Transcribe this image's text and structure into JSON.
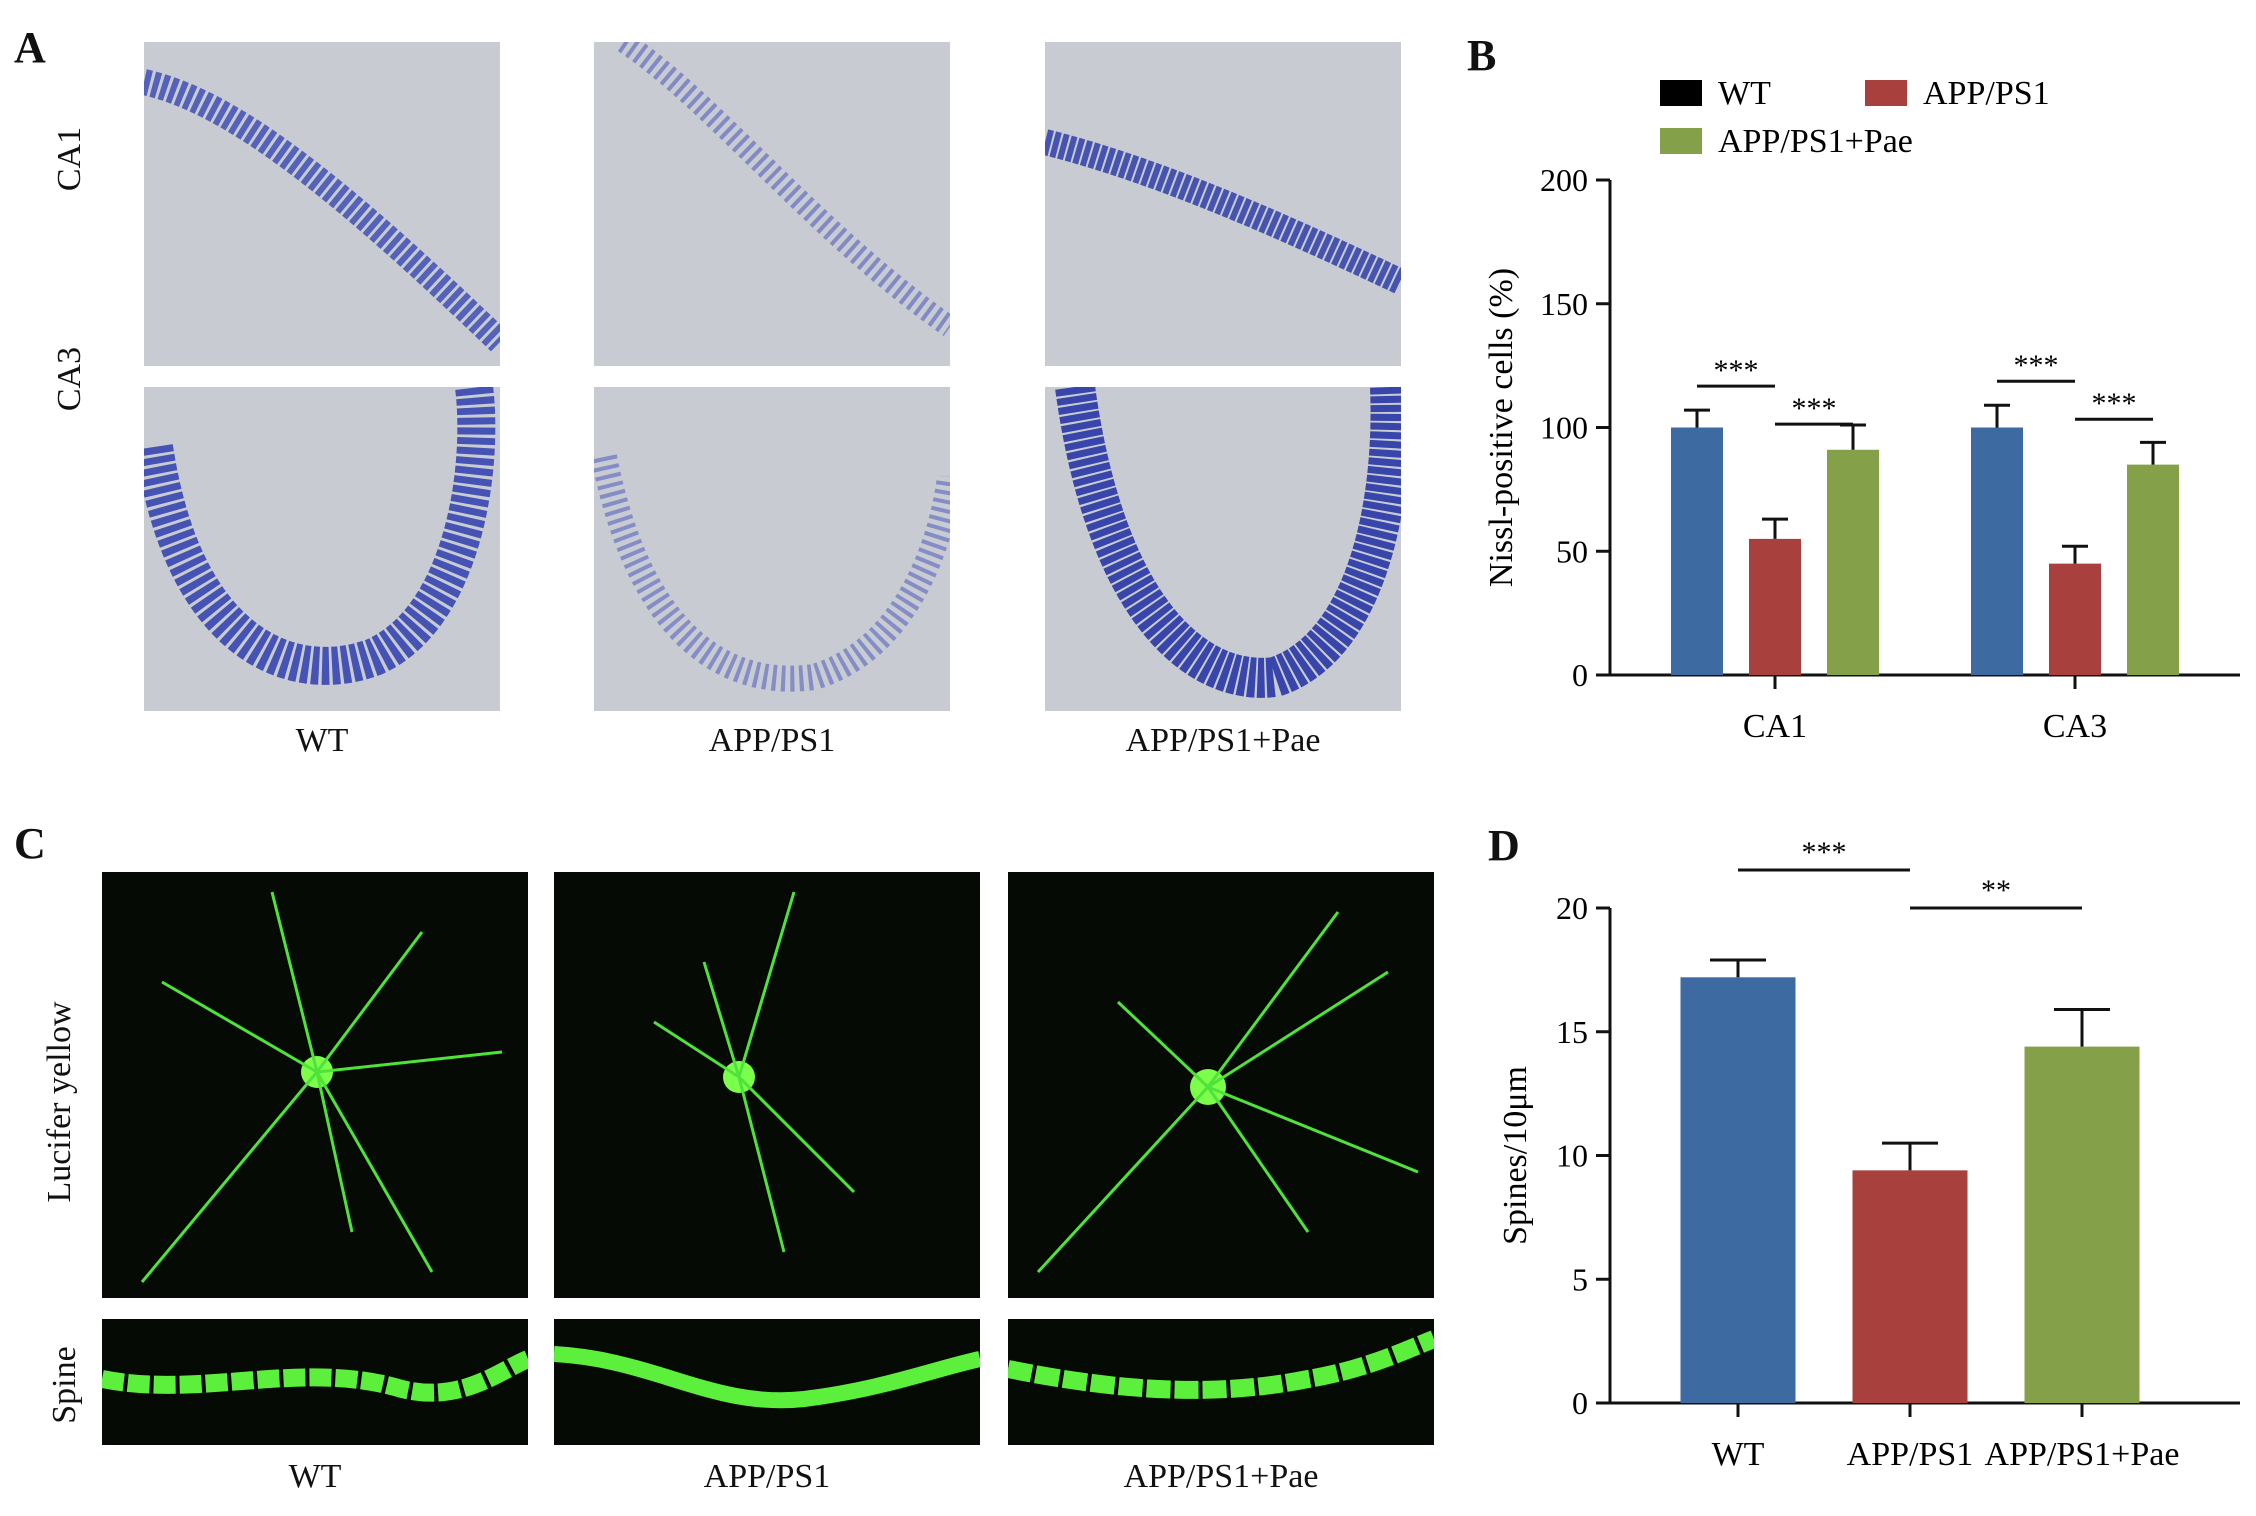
{
  "panels": {
    "A": {
      "letter": "A",
      "rows": [
        "CA1",
        "CA3"
      ],
      "columns": [
        "WT",
        "APP/PS1",
        "APP/PS1+Pae"
      ]
    },
    "B": {
      "letter": "B"
    },
    "C": {
      "letter": "C",
      "rows": [
        "Lucifer yellow",
        "Spine"
      ],
      "columns": [
        "WT",
        "APP/PS1",
        "APP/PS1+Pae"
      ]
    },
    "D": {
      "letter": "D"
    }
  },
  "chart_data": [
    {
      "id": "B",
      "type": "bar",
      "categories": [
        "CA1",
        "CA3"
      ],
      "series": [
        {
          "name": "WT",
          "values": [
            100,
            100
          ],
          "errors": [
            7,
            9
          ],
          "color": "#3d6aa1"
        },
        {
          "name": "APP/PS1",
          "values": [
            55,
            45
          ],
          "errors": [
            8,
            7
          ],
          "color": "#a8403e"
        },
        {
          "name": "APP/PS1+Pae",
          "values": [
            91,
            85
          ],
          "errors": [
            10,
            9
          ],
          "color": "#84a14a"
        }
      ],
      "ylabel": "Nissl-positive cells (%)",
      "ylim": [
        0,
        200
      ],
      "yticks": [
        0,
        50,
        100,
        150,
        200
      ],
      "legend": {
        "position": "top",
        "swatch_colors": [
          "#000000",
          "#a8403e",
          "#84a14a"
        ]
      },
      "significance": [
        {
          "category": "CA1",
          "from": 0,
          "to": 1,
          "label": "***"
        },
        {
          "category": "CA1",
          "from": 1,
          "to": 2,
          "label": "***"
        },
        {
          "category": "CA3",
          "from": 0,
          "to": 1,
          "label": "***"
        },
        {
          "category": "CA3",
          "from": 1,
          "to": 2,
          "label": "***"
        }
      ]
    },
    {
      "id": "D",
      "type": "bar",
      "categories": [
        "WT",
        "APP/PS1",
        "APP/PS1+Pae"
      ],
      "values": [
        17.2,
        9.4,
        14.4
      ],
      "errors": [
        0.7,
        1.1,
        1.5
      ],
      "colors": [
        "#3d6aa1",
        "#a8403e",
        "#84a14a"
      ],
      "ylabel": "Spines/10μm",
      "ylim": [
        0,
        20
      ],
      "yticks": [
        0,
        5,
        10,
        15,
        20
      ],
      "significance": [
        {
          "from": 0,
          "to": 1,
          "label": "***"
        },
        {
          "from": 1,
          "to": 2,
          "label": "**"
        }
      ]
    }
  ]
}
